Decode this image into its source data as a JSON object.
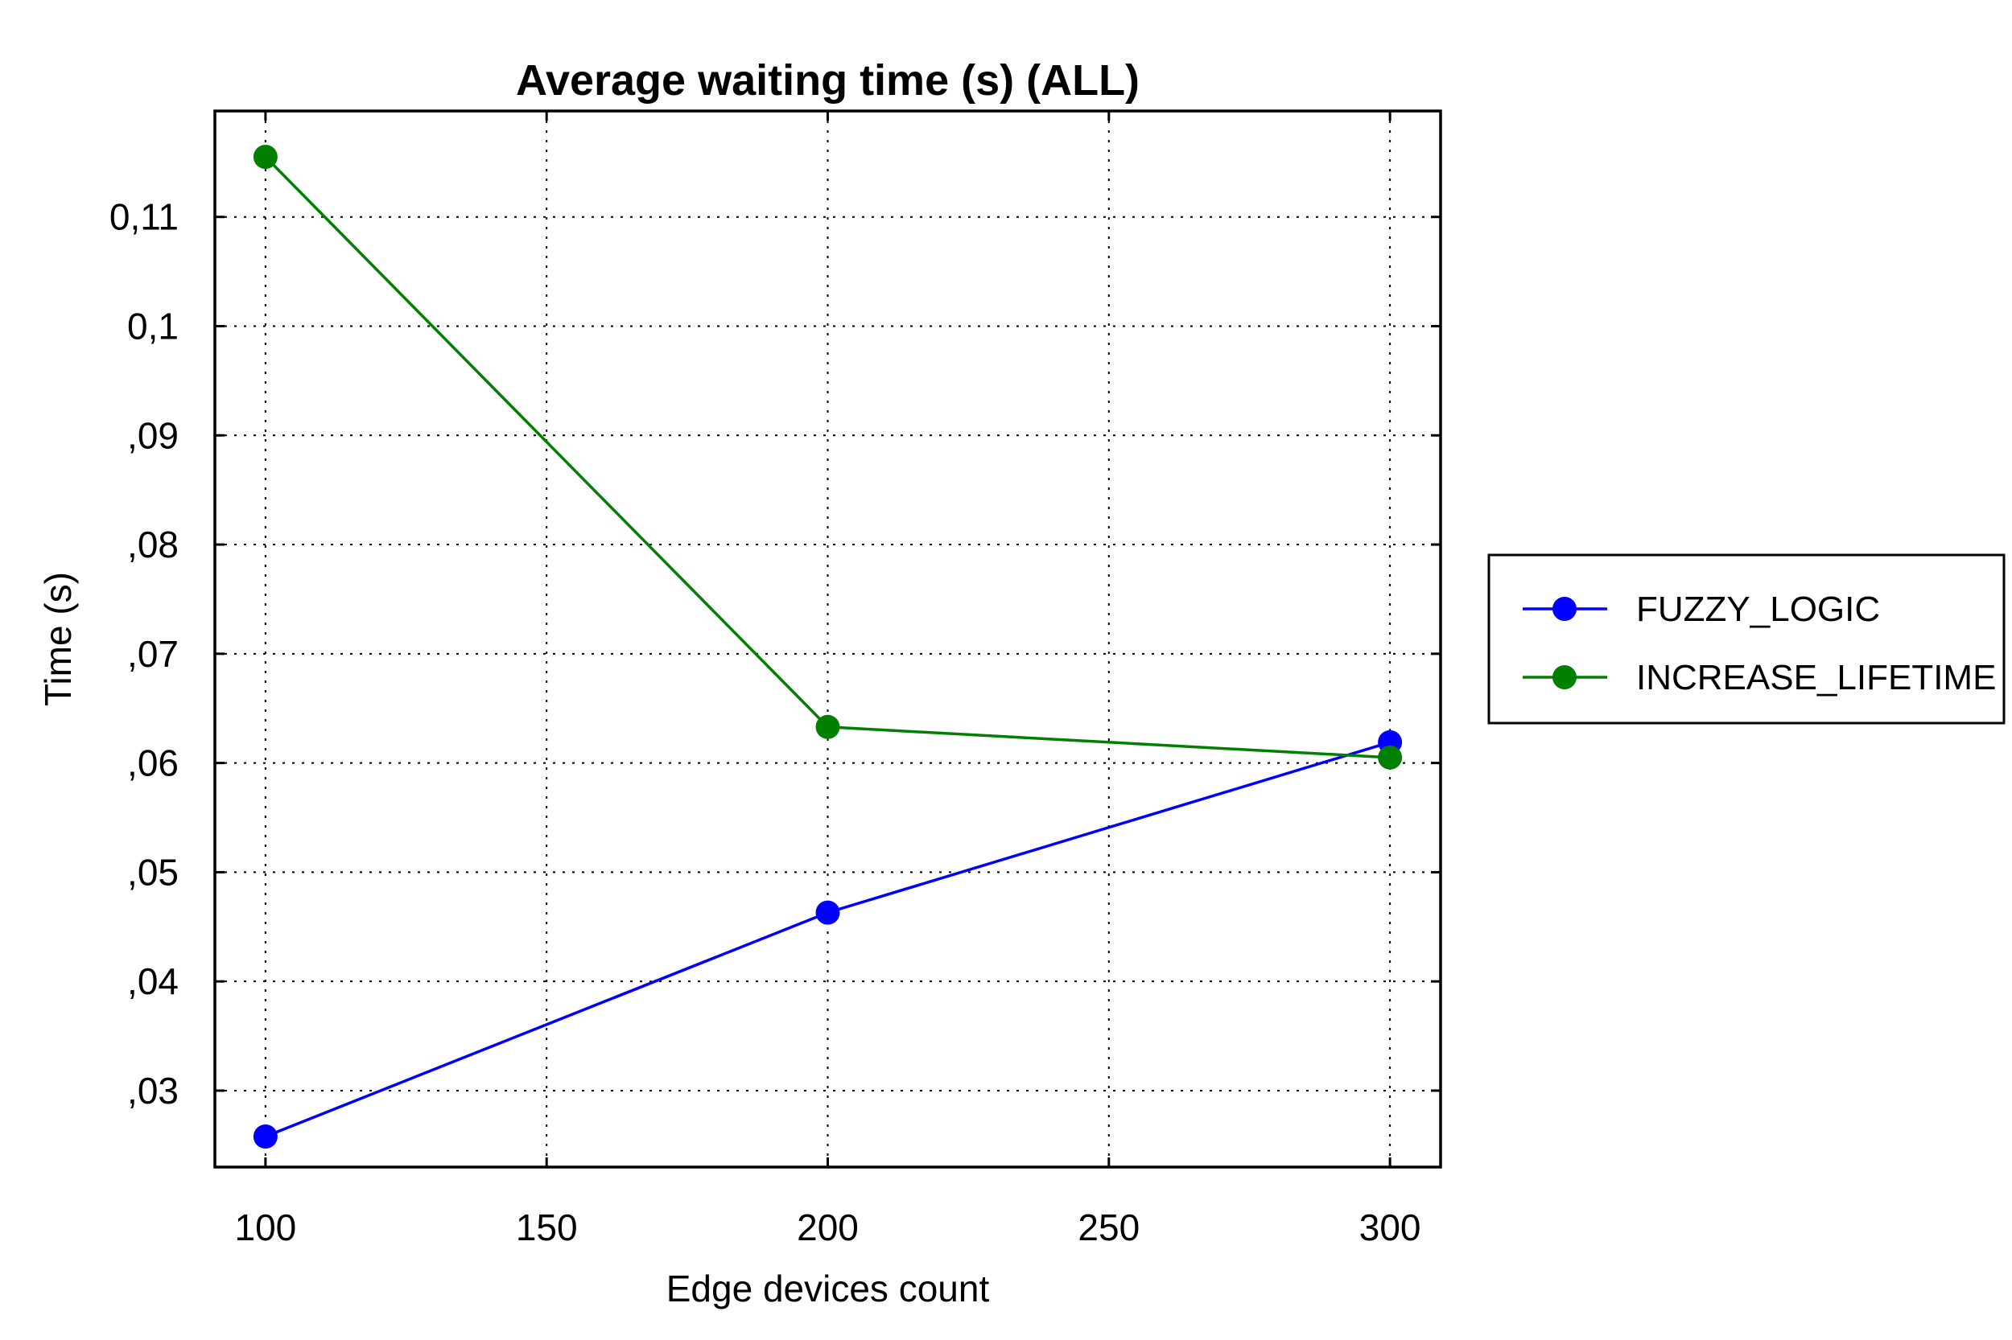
{
  "chart_data": {
    "type": "line",
    "title": "Average waiting time (s) (ALL)",
    "xlabel": "Edge devices count",
    "ylabel": "Time (s)",
    "xlim": [
      91,
      309
    ],
    "ylim": [
      0.023,
      0.1197
    ],
    "xticks": [
      100,
      150,
      200,
      250,
      300
    ],
    "xtick_labels": [
      "100",
      "150",
      "200",
      "250",
      "300"
    ],
    "yticks": [
      0.03,
      0.04,
      0.05,
      0.06,
      0.07,
      0.08,
      0.09,
      0.1,
      0.11
    ],
    "ytick_labels": [
      ",03",
      ",04",
      ",05",
      ",06",
      ",07",
      ",08",
      ",09",
      "0,1",
      "0,11"
    ],
    "grid": true,
    "legend_position": "right",
    "x": [
      100,
      200,
      300
    ],
    "series": [
      {
        "name": "FUZZY_LOGIC",
        "values": [
          0.0258,
          0.0463,
          0.0619
        ],
        "color": "#0000ff"
      },
      {
        "name": "INCREASE_LIFETIME",
        "values": [
          0.1155,
          0.0633,
          0.0605
        ],
        "color": "#007f00"
      }
    ]
  }
}
